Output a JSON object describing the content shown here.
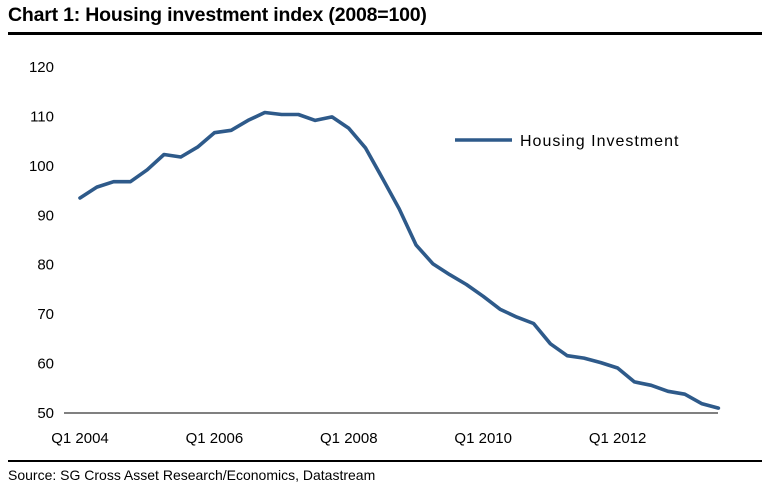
{
  "title": "Chart 1: Housing investment index (2008=100)",
  "source": "Source: SG Cross Asset Research/Economics, Datastream",
  "chart_data": {
    "type": "line",
    "title": "Chart 1: Housing investment index (2008=100)",
    "xlabel": "",
    "ylabel": "",
    "ylim": [
      50,
      120
    ],
    "yticks": [
      50,
      60,
      70,
      80,
      90,
      100,
      110,
      120
    ],
    "xtick_labels": [
      "Q1 2004",
      "Q1 2006",
      "Q1 2008",
      "Q1 2010",
      "Q1 2012"
    ],
    "grid": false,
    "legend": "right",
    "color": "#2e5a8a",
    "x": [
      "Q1 2004",
      "Q2 2004",
      "Q3 2004",
      "Q4 2004",
      "Q1 2005",
      "Q2 2005",
      "Q3 2005",
      "Q4 2005",
      "Q1 2006",
      "Q2 2006",
      "Q3 2006",
      "Q4 2006",
      "Q1 2007",
      "Q2 2007",
      "Q3 2007",
      "Q4 2007",
      "Q1 2008",
      "Q2 2008",
      "Q3 2008",
      "Q4 2008",
      "Q1 2009",
      "Q2 2009",
      "Q3 2009",
      "Q4 2009",
      "Q1 2010",
      "Q2 2010",
      "Q3 2010",
      "Q4 2010",
      "Q1 2011",
      "Q2 2011",
      "Q3 2011",
      "Q4 2011",
      "Q1 2012",
      "Q2 2012",
      "Q3 2012",
      "Q4 2012",
      "Q1 2013",
      "Q2 2013",
      "Q3 2013"
    ],
    "series": [
      {
        "name": "Housing Investment",
        "values": [
          93.5,
          95.7,
          96.8,
          96.8,
          99.2,
          102.3,
          101.8,
          103.8,
          106.7,
          107.2,
          109.2,
          110.8,
          110.4,
          110.4,
          109.2,
          109.9,
          107.6,
          103.6,
          97.5,
          91.3,
          84.0,
          80.2,
          78.0,
          76.0,
          73.6,
          71.0,
          69.4,
          68.1,
          64.0,
          61.6,
          61.1,
          60.2,
          59.1,
          56.3,
          55.6,
          54.4,
          53.8,
          51.9,
          51.0
        ]
      }
    ]
  }
}
